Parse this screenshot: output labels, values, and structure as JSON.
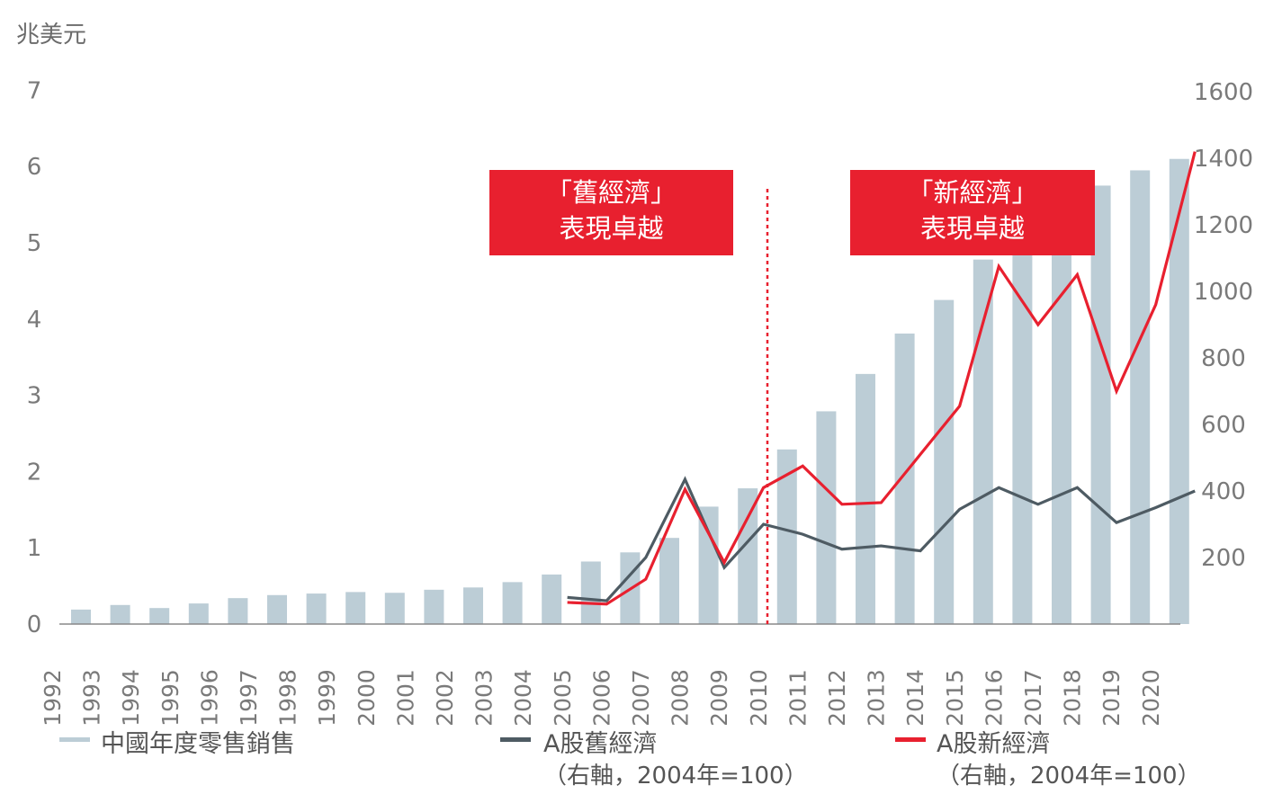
{
  "chart_data": {
    "type": "bar+line",
    "y_left_unit": "兆美元",
    "y_left_ticks": [
      "0",
      "1",
      "2",
      "3",
      "4",
      "5",
      "6",
      "7"
    ],
    "y_left_range": [
      0,
      7
    ],
    "y_right_ticks": [
      "200",
      "400",
      "600",
      "800",
      "1000",
      "1200",
      "1400",
      "1600"
    ],
    "y_right_range": [
      0,
      1600
    ],
    "categories": [
      "1992",
      "1993",
      "1994",
      "1995",
      "1996",
      "1997",
      "1998",
      "1999",
      "2000",
      "2001",
      "2002",
      "2003",
      "2004",
      "2005",
      "2006",
      "2007",
      "2008",
      "2009",
      "2010",
      "2011",
      "2012",
      "2013",
      "2014",
      "2015",
      "2016",
      "2017",
      "2018",
      "2019",
      "2020"
    ],
    "bar_series": {
      "name": "中國年度零售銷售",
      "color": "#bccdd6",
      "values": [
        0.19,
        0.25,
        0.21,
        0.27,
        0.34,
        0.38,
        0.4,
        0.42,
        0.41,
        0.45,
        0.48,
        0.55,
        0.65,
        0.82,
        0.94,
        1.13,
        1.54,
        1.78,
        2.29,
        2.79,
        3.28,
        3.81,
        4.25,
        4.78,
        5.08,
        5.5,
        5.75,
        5.95,
        6.1
      ]
    },
    "line_series": [
      {
        "name": "A股舊經濟",
        "name_sub": "（右軸，2004年=100）",
        "color": "#4e5b63",
        "x": [
          "2004",
          "2005",
          "2006",
          "2007",
          "2008",
          "2009",
          "2010",
          "2011",
          "2012",
          "2013",
          "2014",
          "2015",
          "2016",
          "2017",
          "2018",
          "2019",
          "2020"
        ],
        "values": [
          80,
          70,
          200,
          435,
          170,
          300,
          270,
          225,
          235,
          220,
          345,
          410,
          360,
          410,
          305,
          350,
          400
        ]
      },
      {
        "name": "A股新經濟",
        "name_sub": "（右軸，2004年=100）",
        "color": "#e8202f",
        "x": [
          "2004",
          "2005",
          "2006",
          "2007",
          "2008",
          "2009",
          "2010",
          "2011",
          "2012",
          "2013",
          "2014",
          "2015",
          "2016",
          "2017",
          "2018",
          "2019",
          "2020"
        ],
        "values": [
          65,
          60,
          135,
          405,
          185,
          410,
          475,
          360,
          365,
          510,
          655,
          1075,
          900,
          1050,
          700,
          960,
          1420
        ]
      }
    ],
    "divider_between": [
      "2009",
      "2010"
    ],
    "annotations": [
      {
        "line1": "「舊經濟」",
        "line2": "表現卓越"
      },
      {
        "line1": "「新經濟」",
        "line2": "表現卓越"
      }
    ]
  },
  "colors": {
    "accent_red": "#e8202f",
    "old_economy": "#4e5b63",
    "bars": "#bccdd6",
    "axis": "#888888"
  }
}
